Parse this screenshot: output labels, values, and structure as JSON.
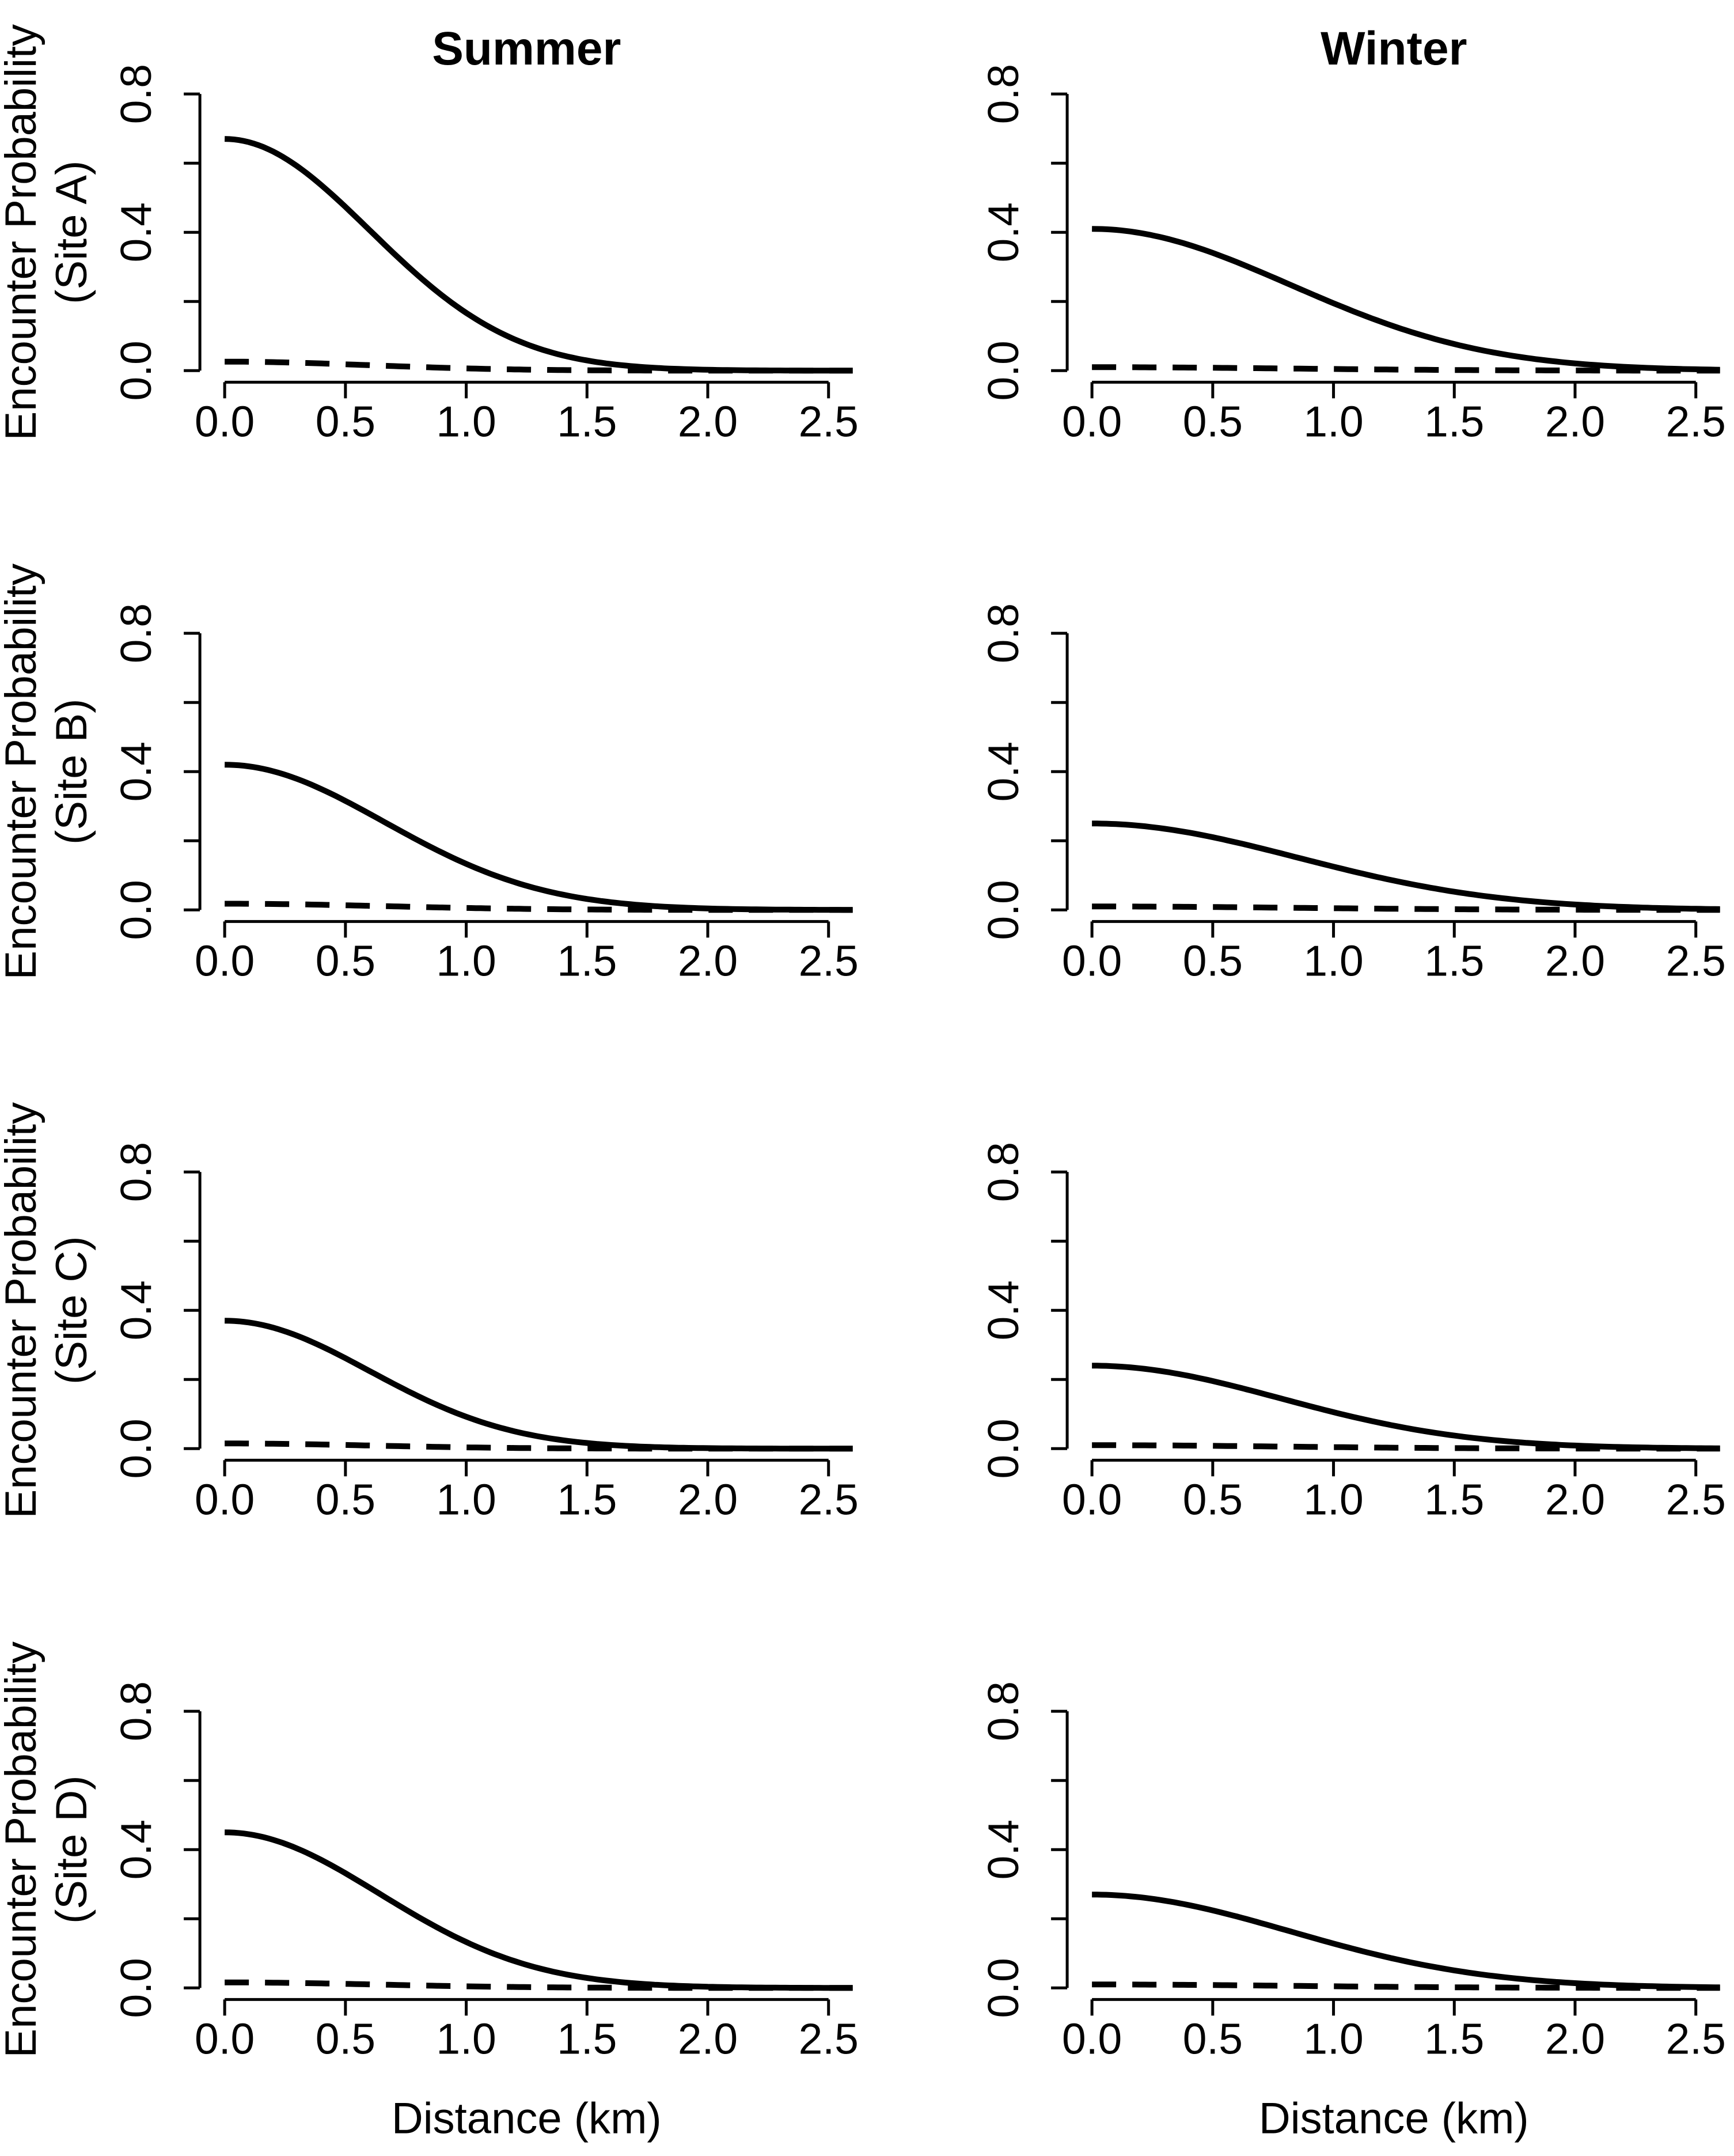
{
  "figure": {
    "col_titles": [
      "Summer",
      "Winter"
    ],
    "x_axis_label": "Distance (km)",
    "y_axis_label_line1": "Encounter Probability",
    "background_color": "#ffffff",
    "line_color": "#000000"
  },
  "chart_data": [
    {
      "type": "line",
      "site": "Site A",
      "season": "Summer",
      "site_label": "(Site A)",
      "title": "Summer",
      "ylabel": "Encounter Probability (Site A)",
      "xlabel": "Distance (km)",
      "xlim": [
        0,
        2.5
      ],
      "ylim": [
        0,
        0.8
      ],
      "grid": false,
      "legend": "none",
      "x_ticks": [
        0,
        0.5,
        1.0,
        1.5,
        2.0,
        2.5
      ],
      "x_tick_labels": [
        "0.0",
        "0.5",
        "1.0",
        "1.5",
        "2.0",
        "2.5"
      ],
      "y_ticks": [
        0,
        0.2,
        0.4,
        0.6,
        0.8
      ],
      "y_tick_labels": [
        "0.0",
        "",
        "0.4",
        "",
        "0.8"
      ],
      "x_samples": [
        0,
        0.25,
        0.5,
        0.75,
        1.0,
        1.25,
        1.5,
        1.75,
        2.0,
        2.25,
        2.5
      ],
      "series": [
        {
          "name": "solid",
          "line_style": "solid",
          "model": "half-normal",
          "p0": 0.67,
          "sigma": 0.6,
          "y": [
            0.67,
            0.614,
            0.473,
            0.307,
            0.167,
            0.076,
            0.029,
            0.01,
            0.003,
            0.001,
            0.0
          ]
        },
        {
          "name": "dashed",
          "line_style": "dashed",
          "model": "half-normal",
          "p0": 0.026,
          "sigma": 0.6,
          "y": [
            0.026,
            0.024,
            0.018,
            0.012,
            0.006,
            0.003,
            0.001,
            0.0,
            0.0,
            0.0,
            0.0
          ]
        }
      ]
    },
    {
      "type": "line",
      "site": "Site A",
      "season": "Winter",
      "site_label": "(Site A)",
      "title": "Winter",
      "ylabel": "",
      "xlabel": "",
      "xlim": [
        0,
        2.5
      ],
      "ylim": [
        0,
        0.8
      ],
      "grid": false,
      "legend": "none",
      "x_ticks": [
        0,
        0.5,
        1.0,
        1.5,
        2.0,
        2.5
      ],
      "x_tick_labels": [
        "0.0",
        "0.5",
        "1.0",
        "1.5",
        "2.0",
        "2.5"
      ],
      "y_ticks": [
        0,
        0.2,
        0.4,
        0.6,
        0.8
      ],
      "y_tick_labels": [
        "0.0",
        "",
        "0.4",
        "",
        "0.8"
      ],
      "x_samples": [
        0,
        0.25,
        0.5,
        0.75,
        1.0,
        1.25,
        1.5,
        1.75,
        2.0,
        2.25,
        2.5
      ],
      "series": [
        {
          "name": "solid",
          "line_style": "solid",
          "model": "half-normal",
          "p0": 0.41,
          "sigma": 0.82,
          "y": [
            0.41,
            0.391,
            0.34,
            0.27,
            0.195,
            0.128,
            0.077,
            0.042,
            0.021,
            0.01,
            0.004
          ]
        },
        {
          "name": "dashed",
          "line_style": "dashed",
          "model": "half-normal",
          "p0": 0.01,
          "sigma": 0.82,
          "y": [
            0.01,
            0.01,
            0.008,
            0.007,
            0.005,
            0.003,
            0.002,
            0.001,
            0.0,
            0.0,
            0.0
          ]
        }
      ]
    },
    {
      "type": "line",
      "site": "Site B",
      "season": "Summer",
      "site_label": "(Site B)",
      "title": "",
      "ylabel": "Encounter Probability (Site B)",
      "xlabel": "",
      "xlim": [
        0,
        2.5
      ],
      "ylim": [
        0,
        0.8
      ],
      "grid": false,
      "legend": "none",
      "x_ticks": [
        0,
        0.5,
        1.0,
        1.5,
        2.0,
        2.5
      ],
      "x_tick_labels": [
        "0.0",
        "0.5",
        "1.0",
        "1.5",
        "2.0",
        "2.5"
      ],
      "y_ticks": [
        0,
        0.2,
        0.4,
        0.6,
        0.8
      ],
      "y_tick_labels": [
        "0.0",
        "",
        "0.4",
        "",
        "0.8"
      ],
      "x_samples": [
        0,
        0.25,
        0.5,
        0.75,
        1.0,
        1.25,
        1.5,
        1.75,
        2.0,
        2.25,
        2.5
      ],
      "series": [
        {
          "name": "solid",
          "line_style": "solid",
          "model": "half-normal",
          "p0": 0.42,
          "sigma": 0.66,
          "y": [
            0.42,
            0.391,
            0.315,
            0.22,
            0.133,
            0.07,
            0.032,
            0.012,
            0.004,
            0.001,
            0.0
          ]
        },
        {
          "name": "dashed",
          "line_style": "dashed",
          "model": "half-normal",
          "p0": 0.018,
          "sigma": 0.66,
          "y": [
            0.018,
            0.017,
            0.014,
            0.009,
            0.006,
            0.003,
            0.001,
            0.0,
            0.0,
            0.0,
            0.0
          ]
        }
      ]
    },
    {
      "type": "line",
      "site": "Site B",
      "season": "Winter",
      "site_label": "(Site B)",
      "title": "",
      "ylabel": "",
      "xlabel": "",
      "xlim": [
        0,
        2.5
      ],
      "ylim": [
        0,
        0.8
      ],
      "grid": false,
      "legend": "none",
      "x_ticks": [
        0,
        0.5,
        1.0,
        1.5,
        2.0,
        2.5
      ],
      "x_tick_labels": [
        "0.0",
        "0.5",
        "1.0",
        "1.5",
        "2.0",
        "2.5"
      ],
      "y_ticks": [
        0,
        0.2,
        0.4,
        0.6,
        0.8
      ],
      "y_tick_labels": [
        "0.0",
        "",
        "0.4",
        "",
        "0.8"
      ],
      "x_samples": [
        0,
        0.25,
        0.5,
        0.75,
        1.0,
        1.25,
        1.5,
        1.75,
        2.0,
        2.25,
        2.5
      ],
      "series": [
        {
          "name": "solid",
          "line_style": "solid",
          "model": "half-normal",
          "p0": 0.25,
          "sigma": 0.85,
          "y": [
            0.25,
            0.239,
            0.21,
            0.169,
            0.125,
            0.085,
            0.053,
            0.03,
            0.016,
            0.008,
            0.003
          ]
        },
        {
          "name": "dashed",
          "line_style": "dashed",
          "model": "half-normal",
          "p0": 0.01,
          "sigma": 0.85,
          "y": [
            0.01,
            0.01,
            0.008,
            0.007,
            0.005,
            0.003,
            0.002,
            0.001,
            0.001,
            0.0,
            0.0
          ]
        }
      ]
    },
    {
      "type": "line",
      "site": "Site C",
      "season": "Summer",
      "site_label": "(Site C)",
      "title": "",
      "ylabel": "Encounter Probability (Site C)",
      "xlabel": "",
      "xlim": [
        0,
        2.5
      ],
      "ylim": [
        0,
        0.8
      ],
      "grid": false,
      "legend": "none",
      "x_ticks": [
        0,
        0.5,
        1.0,
        1.5,
        2.0,
        2.5
      ],
      "x_tick_labels": [
        "0.0",
        "0.5",
        "1.0",
        "1.5",
        "2.0",
        "2.5"
      ],
      "y_ticks": [
        0,
        0.2,
        0.4,
        0.6,
        0.8
      ],
      "y_tick_labels": [
        "0.0",
        "",
        "0.4",
        "",
        "0.8"
      ],
      "x_samples": [
        0,
        0.25,
        0.5,
        0.75,
        1.0,
        1.25,
        1.5,
        1.75,
        2.0,
        2.25,
        2.5
      ],
      "series": [
        {
          "name": "solid",
          "line_style": "solid",
          "model": "half-normal",
          "p0": 0.37,
          "sigma": 0.6,
          "y": [
            0.37,
            0.339,
            0.261,
            0.169,
            0.092,
            0.042,
            0.016,
            0.005,
            0.001,
            0.0,
            0.0
          ]
        },
        {
          "name": "dashed",
          "line_style": "dashed",
          "model": "half-normal",
          "p0": 0.015,
          "sigma": 0.6,
          "y": [
            0.015,
            0.014,
            0.011,
            0.007,
            0.004,
            0.002,
            0.001,
            0.0,
            0.0,
            0.0,
            0.0
          ]
        }
      ]
    },
    {
      "type": "line",
      "site": "Site C",
      "season": "Winter",
      "site_label": "(Site C)",
      "title": "",
      "ylabel": "",
      "xlabel": "",
      "xlim": [
        0,
        2.5
      ],
      "ylim": [
        0,
        0.8
      ],
      "grid": false,
      "legend": "none",
      "x_ticks": [
        0,
        0.5,
        1.0,
        1.5,
        2.0,
        2.5
      ],
      "x_tick_labels": [
        "0.0",
        "0.5",
        "1.0",
        "1.5",
        "2.0",
        "2.5"
      ],
      "y_ticks": [
        0,
        0.2,
        0.4,
        0.6,
        0.8
      ],
      "y_tick_labels": [
        "0.0",
        "",
        "0.4",
        "",
        "0.8"
      ],
      "x_samples": [
        0,
        0.25,
        0.5,
        0.75,
        1.0,
        1.25,
        1.5,
        1.75,
        2.0,
        2.25,
        2.5
      ],
      "series": [
        {
          "name": "solid",
          "line_style": "solid",
          "model": "half-normal",
          "p0": 0.24,
          "sigma": 0.78,
          "y": [
            0.24,
            0.228,
            0.195,
            0.151,
            0.106,
            0.066,
            0.038,
            0.019,
            0.009,
            0.004,
            0.001
          ]
        },
        {
          "name": "dashed",
          "line_style": "dashed",
          "model": "half-normal",
          "p0": 0.01,
          "sigma": 0.78,
          "y": [
            0.01,
            0.009,
            0.008,
            0.006,
            0.004,
            0.003,
            0.002,
            0.001,
            0.0,
            0.0,
            0.0
          ]
        }
      ]
    },
    {
      "type": "line",
      "site": "Site D",
      "season": "Summer",
      "site_label": "(Site D)",
      "title": "",
      "ylabel": "Encounter Probability (Site D)",
      "xlabel": "Distance (km)",
      "xlim": [
        0,
        2.5
      ],
      "ylim": [
        0,
        0.8
      ],
      "grid": false,
      "legend": "none",
      "x_ticks": [
        0,
        0.5,
        1.0,
        1.5,
        2.0,
        2.5
      ],
      "x_tick_labels": [
        "0.0",
        "0.5",
        "1.0",
        "1.5",
        "2.0",
        "2.5"
      ],
      "y_ticks": [
        0,
        0.2,
        0.4,
        0.6,
        0.8
      ],
      "y_tick_labels": [
        "0.0",
        "",
        "0.4",
        "",
        "0.8"
      ],
      "x_samples": [
        0,
        0.25,
        0.5,
        0.75,
        1.0,
        1.25,
        1.5,
        1.75,
        2.0,
        2.25,
        2.5
      ],
      "series": [
        {
          "name": "solid",
          "line_style": "solid",
          "model": "half-normal",
          "p0": 0.45,
          "sigma": 0.64,
          "y": [
            0.45,
            0.417,
            0.332,
            0.226,
            0.133,
            0.067,
            0.029,
            0.011,
            0.003,
            0.001,
            0.0
          ]
        },
        {
          "name": "dashed",
          "line_style": "dashed",
          "model": "half-normal",
          "p0": 0.016,
          "sigma": 0.64,
          "y": [
            0.016,
            0.015,
            0.012,
            0.008,
            0.005,
            0.002,
            0.001,
            0.0,
            0.0,
            0.0,
            0.0
          ]
        }
      ]
    },
    {
      "type": "line",
      "site": "Site D",
      "season": "Winter",
      "site_label": "(Site D)",
      "title": "",
      "ylabel": "",
      "xlabel": "Distance (km)",
      "xlim": [
        0,
        2.5
      ],
      "ylim": [
        0,
        0.8
      ],
      "grid": false,
      "legend": "none",
      "x_ticks": [
        0,
        0.5,
        1.0,
        1.5,
        2.0,
        2.5
      ],
      "x_tick_labels": [
        "0.0",
        "0.5",
        "1.0",
        "1.5",
        "2.0",
        "2.5"
      ],
      "y_ticks": [
        0,
        0.2,
        0.4,
        0.6,
        0.8
      ],
      "y_tick_labels": [
        "0.0",
        "",
        "0.4",
        "",
        "0.8"
      ],
      "x_samples": [
        0,
        0.25,
        0.5,
        0.75,
        1.0,
        1.25,
        1.5,
        1.75,
        2.0,
        2.25,
        2.5
      ],
      "series": [
        {
          "name": "solid",
          "line_style": "solid",
          "model": "half-normal",
          "p0": 0.27,
          "sigma": 0.82,
          "y": [
            0.27,
            0.258,
            0.224,
            0.178,
            0.128,
            0.084,
            0.051,
            0.028,
            0.014,
            0.006,
            0.003
          ]
        },
        {
          "name": "dashed",
          "line_style": "dashed",
          "model": "half-normal",
          "p0": 0.01,
          "sigma": 0.82,
          "y": [
            0.01,
            0.01,
            0.008,
            0.007,
            0.005,
            0.003,
            0.002,
            0.001,
            0.0,
            0.0,
            0.0
          ]
        }
      ]
    }
  ]
}
